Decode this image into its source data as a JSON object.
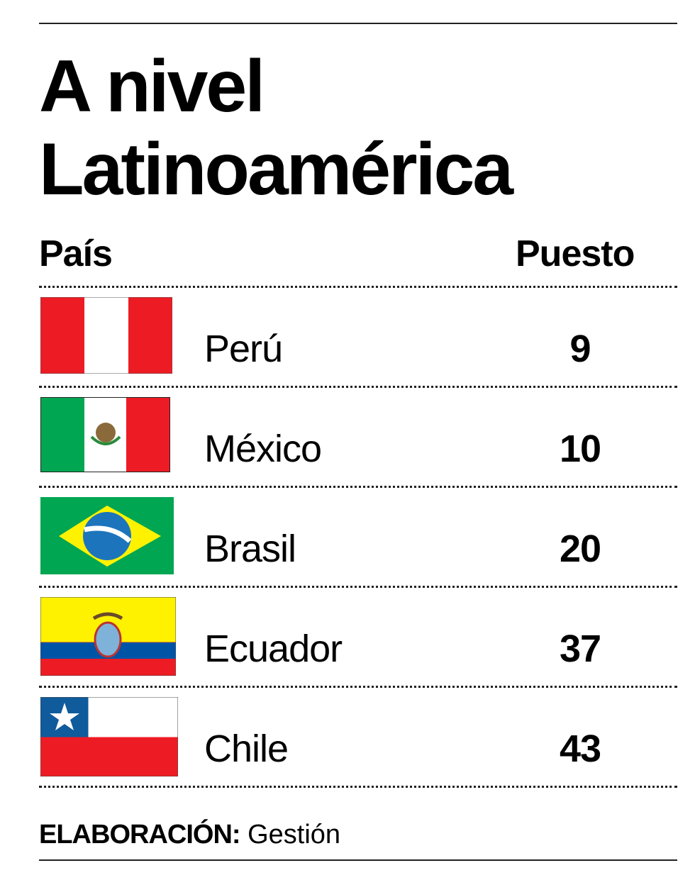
{
  "title": {
    "line1": "A nivel",
    "line2": "Latinoamérica"
  },
  "chart_data": {
    "type": "table",
    "columns": [
      "País",
      "Puesto"
    ],
    "rows": [
      {
        "country": "Perú",
        "rank": "9",
        "flag": "peru-flag"
      },
      {
        "country": "México",
        "rank": "10",
        "flag": "mexico-flag"
      },
      {
        "country": "Brasil",
        "rank": "20",
        "flag": "brazil-flag"
      },
      {
        "country": "Ecuador",
        "rank": "37",
        "flag": "ecuador-flag"
      },
      {
        "country": "Chile",
        "rank": "43",
        "flag": "chile-flag"
      }
    ]
  },
  "footer": {
    "label": "ELABORACIÓN:",
    "source": "Gestión"
  },
  "colors": {
    "red": "#ed1c24",
    "green": "#00a651",
    "yellow": "#fff200",
    "blue": "#0054a6",
    "chile_blue": "#0f5b9c"
  }
}
